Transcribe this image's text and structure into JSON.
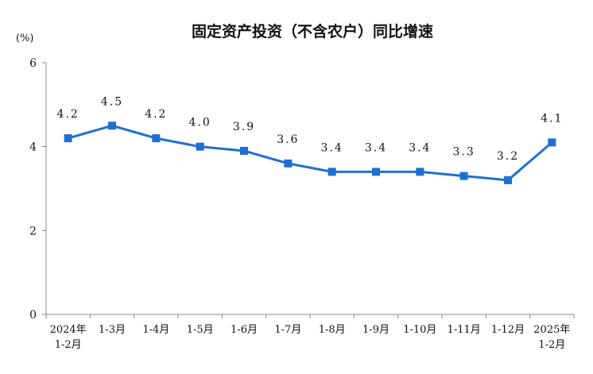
{
  "chart_data": {
    "type": "line",
    "title": "固定资产投资（不含农户）同比增速",
    "unit_label": "(%)",
    "ylim": [
      0,
      6
    ],
    "yticks": [
      "0",
      "2",
      "4",
      "6"
    ],
    "categories": [
      [
        "2024年",
        "1-2月"
      ],
      [
        "1-3月"
      ],
      [
        "1-4月"
      ],
      [
        "1-5月"
      ],
      [
        "1-6月"
      ],
      [
        "1-7月"
      ],
      [
        "1-8月"
      ],
      [
        "1-9月"
      ],
      [
        "1-10月"
      ],
      [
        "1-11月"
      ],
      [
        "1-12月"
      ],
      [
        "2025年",
        "1-2月"
      ]
    ],
    "values": [
      4.2,
      4.5,
      4.2,
      4.0,
      3.9,
      3.6,
      3.4,
      3.4,
      3.4,
      3.3,
      3.2,
      4.1
    ],
    "data_labels": [
      "4.2",
      "4.5",
      "4.2",
      "4.0",
      "3.9",
      "3.6",
      "3.4",
      "3.4",
      "3.4",
      "3.3",
      "3.2",
      "4.1"
    ],
    "grid": false,
    "legend": "none",
    "line_color": "#1f6fd1",
    "axis_color": "#888888"
  }
}
